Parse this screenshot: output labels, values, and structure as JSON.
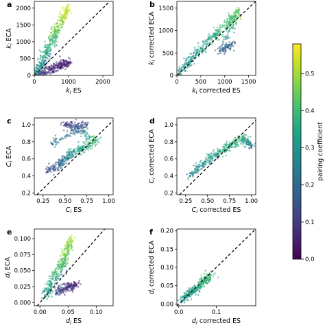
{
  "chart_data": {
    "type": "scatter",
    "identity_line": "dashed",
    "colormap": {
      "label": "pairing coefficient",
      "range": [
        0.0,
        0.58
      ],
      "ticks": [
        "0.0",
        "0.1",
        "0.2",
        "0.3",
        "0.4",
        "0.5"
      ],
      "stops": [
        "#440154",
        "#482475",
        "#414487",
        "#355f8d",
        "#2a788e",
        "#21908d",
        "#22a884",
        "#43bf71",
        "#7ad151",
        "#bddf26",
        "#fde725"
      ]
    },
    "panels": [
      {
        "letter": "a",
        "xlabel": "k_i ES",
        "ylabel": "k_i ECA",
        "xlim": [
          0,
          2300
        ],
        "ylim": [
          0,
          2200
        ],
        "xticks": [
          0,
          1000,
          2000
        ],
        "yticks": [
          0,
          500,
          1000,
          1500,
          2000
        ],
        "cluster_points": [
          {
            "x": 0,
            "y": 0,
            "c": 0.3
          },
          {
            "x": 200,
            "y": 350,
            "c": 0.32
          },
          {
            "x": 400,
            "y": 800,
            "c": 0.38
          },
          {
            "x": 600,
            "y": 1250,
            "c": 0.45
          },
          {
            "x": 800,
            "y": 1650,
            "c": 0.5
          },
          {
            "x": 950,
            "y": 2000,
            "c": 0.55
          },
          {
            "x": 200,
            "y": 60,
            "c": 0.1
          },
          {
            "x": 500,
            "y": 180,
            "c": 0.08
          },
          {
            "x": 800,
            "y": 320,
            "c": 0.05
          },
          {
            "x": 1000,
            "y": 380,
            "c": 0.04
          }
        ]
      },
      {
        "letter": "b",
        "xlabel": "k_i corrected ES",
        "ylabel": "k_i corrected ECA",
        "xlim": [
          0,
          1650
        ],
        "ylim": [
          0,
          1650
        ],
        "xticks": [
          0,
          500,
          1000,
          1500
        ],
        "yticks": [
          0,
          500,
          1000,
          1500
        ],
        "cluster_points": [
          {
            "x": 0,
            "y": 0,
            "c": 0.3
          },
          {
            "x": 250,
            "y": 300,
            "c": 0.3
          },
          {
            "x": 500,
            "y": 600,
            "c": 0.32
          },
          {
            "x": 800,
            "y": 900,
            "c": 0.35
          },
          {
            "x": 1100,
            "y": 1200,
            "c": 0.4
          },
          {
            "x": 1300,
            "y": 1450,
            "c": 0.45
          },
          {
            "x": 900,
            "y": 550,
            "c": 0.2
          },
          {
            "x": 1150,
            "y": 700,
            "c": 0.18
          }
        ]
      },
      {
        "letter": "c",
        "xlabel": "C_i ES",
        "ylabel": "C_i ECA",
        "xlim": [
          0.15,
          1.05
        ],
        "ylim": [
          0.18,
          1.08
        ],
        "xticks": [
          0.25,
          0.5,
          0.75,
          1.0
        ],
        "yticks": [
          0.2,
          0.4,
          0.6,
          0.8,
          1.0
        ],
        "cluster_points": [
          {
            "x": 0.3,
            "y": 0.45,
            "c": 0.12
          },
          {
            "x": 0.45,
            "y": 0.55,
            "c": 0.2
          },
          {
            "x": 0.55,
            "y": 0.65,
            "c": 0.28
          },
          {
            "x": 0.7,
            "y": 0.72,
            "c": 0.35
          },
          {
            "x": 0.85,
            "y": 0.82,
            "c": 0.4
          },
          {
            "x": 0.5,
            "y": 1.0,
            "c": 0.1
          },
          {
            "x": 0.75,
            "y": 1.0,
            "c": 0.15
          },
          {
            "x": 0.35,
            "y": 0.78,
            "c": 0.25
          }
        ]
      },
      {
        "letter": "d",
        "xlabel": "C_i corrected ES",
        "ylabel": "C_i corrected ECA",
        "xlim": [
          0.15,
          1.05
        ],
        "ylim": [
          0.18,
          1.08
        ],
        "xticks": [
          0.25,
          0.5,
          0.75,
          1.0
        ],
        "yticks": [
          0.2,
          0.4,
          0.6,
          0.8,
          1.0
        ],
        "cluster_points": [
          {
            "x": 0.3,
            "y": 0.4,
            "c": 0.25
          },
          {
            "x": 0.45,
            "y": 0.55,
            "c": 0.3
          },
          {
            "x": 0.6,
            "y": 0.65,
            "c": 0.33
          },
          {
            "x": 0.75,
            "y": 0.75,
            "c": 0.35
          },
          {
            "x": 0.9,
            "y": 0.85,
            "c": 0.38
          },
          {
            "x": 1.0,
            "y": 0.75,
            "c": 0.2
          }
        ]
      },
      {
        "letter": "e",
        "xlabel": "d_i ES",
        "ylabel": "d_i ECA",
        "xlim": [
          -0.01,
          0.13
        ],
        "ylim": [
          -0.005,
          0.115
        ],
        "xticks": [
          0.0,
          0.05,
          0.1
        ],
        "yticks": [
          0.0,
          0.025,
          0.05,
          0.075,
          0.1
        ],
        "cluster_points": [
          {
            "x": 0.01,
            "y": 0.01,
            "c": 0.3
          },
          {
            "x": 0.02,
            "y": 0.03,
            "c": 0.35
          },
          {
            "x": 0.035,
            "y": 0.055,
            "c": 0.42
          },
          {
            "x": 0.045,
            "y": 0.075,
            "c": 0.48
          },
          {
            "x": 0.055,
            "y": 0.1,
            "c": 0.5
          },
          {
            "x": 0.03,
            "y": 0.015,
            "c": 0.12
          },
          {
            "x": 0.05,
            "y": 0.025,
            "c": 0.08
          },
          {
            "x": 0.065,
            "y": 0.028,
            "c": 0.05
          }
        ]
      },
      {
        "letter": "f",
        "xlabel": "d_i corrected ES",
        "ylabel": "d_i corrected ECA",
        "xlim": [
          -0.005,
          0.205
        ],
        "ylim": [
          -0.005,
          0.205
        ],
        "xticks": [
          0.0,
          0.1
        ],
        "yticks": [
          0.0,
          0.05,
          0.1,
          0.15,
          0.2
        ],
        "cluster_points": [
          {
            "x": 0.01,
            "y": 0.01,
            "c": 0.3
          },
          {
            "x": 0.03,
            "y": 0.03,
            "c": 0.32
          },
          {
            "x": 0.05,
            "y": 0.045,
            "c": 0.35
          },
          {
            "x": 0.07,
            "y": 0.065,
            "c": 0.38
          },
          {
            "x": 0.085,
            "y": 0.08,
            "c": 0.4
          }
        ]
      }
    ]
  }
}
